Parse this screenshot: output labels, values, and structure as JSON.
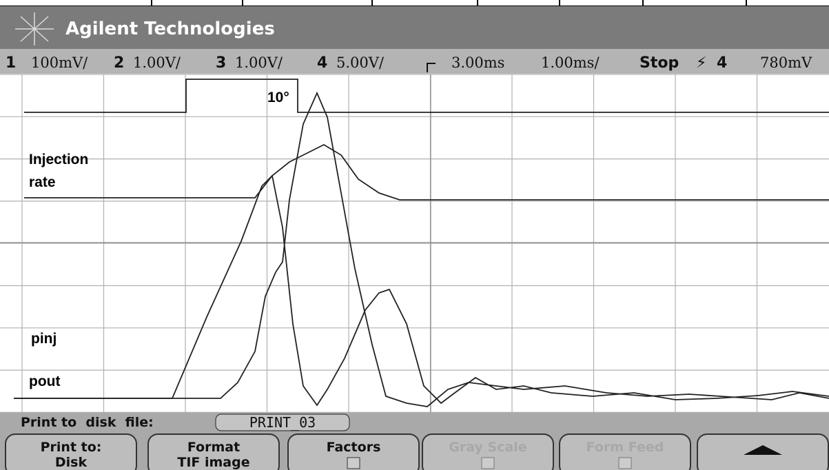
{
  "header": {
    "brand": "Agilent Technologies"
  },
  "status": [
    "1",
    "100mV/",
    "2",
    "1.00V/",
    "3",
    "1.00V/",
    "4",
    "5.00V/",
    "3.00ms",
    "1.00ms/",
    "Stop",
    "4",
    "780mV"
  ],
  "annotations": {
    "angle": "10°",
    "injection": "Injection",
    "rate": "rate",
    "pinj": "pinj",
    "pout": "pout"
  },
  "print_bar": {
    "label": "Print to  disk  file:",
    "file": "PRINT_03"
  },
  "softkeys": [
    {
      "line1": "Print to:",
      "line2": "Disk"
    },
    {
      "line1": "Format",
      "line2": "TIF image"
    },
    {
      "line1": "Factors"
    },
    {
      "line1": "Gray Scale"
    },
    {
      "line1": "Form Feed"
    }
  ]
}
